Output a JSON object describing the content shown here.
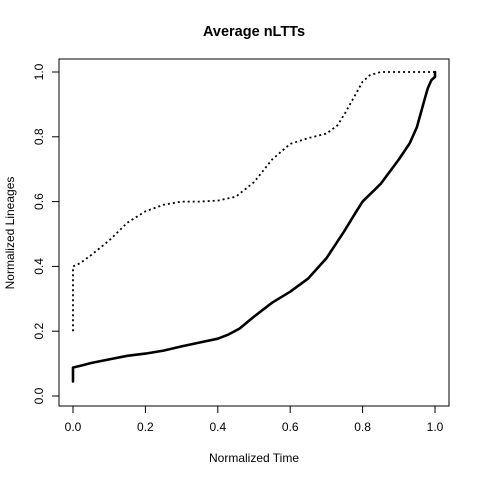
{
  "chart_data": {
    "type": "line",
    "title": "Average nLTTs",
    "xlabel": "Normalized Time",
    "ylabel": "Normalized Lineages",
    "xlim": [
      0,
      1
    ],
    "ylim": [
      0,
      1
    ],
    "x_ticks": [
      "0.0",
      "0.2",
      "0.4",
      "0.6",
      "0.8",
      "1.0"
    ],
    "y_ticks": [
      "0.0",
      "0.2",
      "0.4",
      "0.6",
      "0.8",
      "1.0"
    ],
    "grid": false,
    "legend": "none",
    "series": [
      {
        "style": "solid",
        "color": "#000000",
        "x": [
          0,
          0,
          0.02,
          0.05,
          0.1,
          0.15,
          0.2,
          0.25,
          0.3,
          0.35,
          0.4,
          0.43,
          0.46,
          0.5,
          0.55,
          0.6,
          0.65,
          0.7,
          0.75,
          0.78,
          0.8,
          0.85,
          0.9,
          0.93,
          0.95,
          0.97,
          0.98,
          0.99,
          1.0,
          1.0
        ],
        "y": [
          0.045,
          0.088,
          0.093,
          0.102,
          0.113,
          0.124,
          0.131,
          0.14,
          0.153,
          0.165,
          0.177,
          0.19,
          0.208,
          0.245,
          0.288,
          0.322,
          0.363,
          0.425,
          0.51,
          0.565,
          0.6,
          0.655,
          0.73,
          0.78,
          0.83,
          0.91,
          0.95,
          0.975,
          0.985,
          1.0
        ]
      },
      {
        "style": "dotted",
        "color": "#000000",
        "x": [
          0,
          0,
          0.02,
          0.05,
          0.1,
          0.15,
          0.2,
          0.25,
          0.3,
          0.35,
          0.4,
          0.45,
          0.5,
          0.55,
          0.6,
          0.65,
          0.7,
          0.73,
          0.75,
          0.78,
          0.8,
          0.82,
          0.85,
          0.9,
          0.95,
          1.0
        ],
        "y": [
          0.2,
          0.4,
          0.41,
          0.435,
          0.48,
          0.535,
          0.57,
          0.59,
          0.6,
          0.6,
          0.603,
          0.615,
          0.66,
          0.73,
          0.778,
          0.796,
          0.81,
          0.835,
          0.87,
          0.93,
          0.97,
          0.99,
          1.0,
          1.0,
          1.0,
          1.0
        ]
      }
    ]
  }
}
